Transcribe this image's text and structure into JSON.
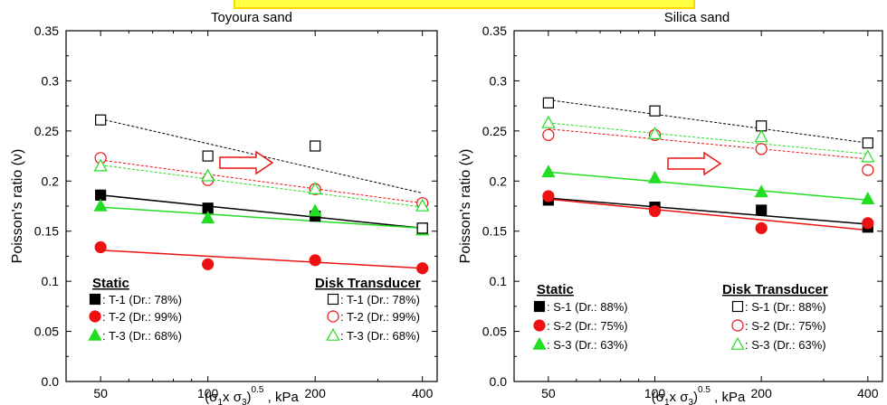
{
  "chart_data": [
    {
      "type": "scatter",
      "title": "Toyoura sand",
      "xlabel_main": "(σ",
      "xlabel_sub1": "1",
      "xlabel_mid": "x σ",
      "xlabel_sub3": "3",
      "xlabel_close": ")",
      "xlabel_sup": "0.5",
      "xlabel_unit": " , kPa",
      "ylabel": "Poisson's ratio (ν)",
      "xscale": "log",
      "xlim": [
        40,
        440
      ],
      "ylim": [
        0,
        0.35
      ],
      "xticks": [
        50,
        100,
        200,
        400
      ],
      "xtick_labels": [
        "50",
        "100",
        "200",
        "400"
      ],
      "yticks": [
        0,
        0.05,
        0.1,
        0.15,
        0.2,
        0.25,
        0.3,
        0.35
      ],
      "ytick_labels": [
        "0.0",
        "0.05",
        "0.1",
        "0.15",
        "0.2",
        "0.25",
        "0.3",
        "0.35"
      ],
      "legend_static_title": "Static",
      "legend_disk_title": "Disk Transducer",
      "series": [
        {
          "name": ": T-1 (Dr.: 78%)",
          "method": "static",
          "marker": "square",
          "filled": true,
          "color": "#000000",
          "x": [
            50,
            100,
            200,
            400
          ],
          "y": [
            0.186,
            0.173,
            0.165,
            0.153
          ],
          "fit": [
            0.186,
            0.153
          ],
          "fit_style": "solid"
        },
        {
          "name": ": T-2 (Dr.: 99%)",
          "method": "static",
          "marker": "circle",
          "filled": true,
          "color": "#ee1111",
          "x": [
            50,
            100,
            200,
            400
          ],
          "y": [
            0.134,
            0.117,
            0.121,
            0.113
          ],
          "fit": [
            0.131,
            0.113
          ],
          "fit_style": "solid"
        },
        {
          "name": ": T-3 (Dr.: 68%)",
          "method": "static",
          "marker": "triangle",
          "filled": true,
          "color": "#22dd22",
          "x": [
            50,
            100,
            200,
            400
          ],
          "y": [
            0.175,
            0.163,
            0.17,
            0.151
          ],
          "fit": [
            0.174,
            0.153
          ],
          "fit_style": "solid"
        },
        {
          "name": ": T-1 (Dr.: 78%)",
          "method": "disk",
          "marker": "square",
          "filled": false,
          "color": "#000000",
          "x": [
            50,
            100,
            200,
            400
          ],
          "y": [
            0.261,
            0.225,
            0.235,
            0.153
          ],
          "fit": [
            0.262,
            0.188
          ],
          "fit_style": "dashed"
        },
        {
          "name": ": T-2 (Dr.: 99%)",
          "method": "disk",
          "marker": "circle",
          "filled": false,
          "color": "#ee1111",
          "x": [
            50,
            100,
            200,
            400
          ],
          "y": [
            0.223,
            0.201,
            0.192,
            0.178
          ],
          "fit": [
            0.221,
            0.178
          ],
          "fit_style": "dashed"
        },
        {
          "name": ": T-3 (Dr.: 68%)",
          "method": "disk",
          "marker": "triangle",
          "filled": false,
          "color": "#22dd22",
          "x": [
            50,
            100,
            200,
            400
          ],
          "y": [
            0.215,
            0.205,
            0.192,
            0.175
          ],
          "fit": [
            0.216,
            0.174
          ],
          "fit_style": "dashed"
        }
      ]
    },
    {
      "type": "scatter",
      "title": "Silica sand",
      "xlabel_main": "(σ",
      "xlabel_sub1": "1",
      "xlabel_mid": "x σ",
      "xlabel_sub3": "3",
      "xlabel_close": ")",
      "xlabel_sup": "0.5",
      "xlabel_unit": " , kPa",
      "ylabel": "Poisson's ratio (ν)",
      "xscale": "log",
      "xlim": [
        40,
        440
      ],
      "ylim": [
        0,
        0.35
      ],
      "xticks": [
        50,
        100,
        200,
        400
      ],
      "xtick_labels": [
        "50",
        "100",
        "200",
        "400"
      ],
      "yticks": [
        0,
        0.05,
        0.1,
        0.15,
        0.2,
        0.25,
        0.3,
        0.35
      ],
      "ytick_labels": [
        "0.0",
        "0.05",
        "0.1",
        "0.15",
        "0.2",
        "0.25",
        "0.3",
        "0.35"
      ],
      "legend_static_title": "Static",
      "legend_disk_title": "Disk Transducer",
      "series": [
        {
          "name": ": S-1 (Dr.: 88%)",
          "method": "static",
          "marker": "square",
          "filled": true,
          "color": "#000000",
          "x": [
            50,
            100,
            200,
            400
          ],
          "y": [
            0.181,
            0.174,
            0.171,
            0.154
          ],
          "fit": [
            0.183,
            0.157
          ],
          "fit_style": "solid"
        },
        {
          "name": ": S-2 (Dr.: 75%)",
          "method": "static",
          "marker": "circle",
          "filled": true,
          "color": "#ee1111",
          "x": [
            50,
            100,
            200,
            400
          ],
          "y": [
            0.185,
            0.17,
            0.153,
            0.158
          ],
          "fit": [
            0.182,
            0.151
          ],
          "fit_style": "solid"
        },
        {
          "name": ": S-3 (Dr.: 63%)",
          "method": "static",
          "marker": "triangle",
          "filled": true,
          "color": "#22dd22",
          "x": [
            50,
            100,
            200,
            400
          ],
          "y": [
            0.209,
            0.203,
            0.189,
            0.182
          ],
          "fit": [
            0.209,
            0.181
          ],
          "fit_style": "solid"
        },
        {
          "name": ": S-1 (Dr.: 88%)",
          "method": "disk",
          "marker": "square",
          "filled": false,
          "color": "#000000",
          "x": [
            50,
            100,
            200,
            400
          ],
          "y": [
            0.278,
            0.27,
            0.255,
            0.238
          ],
          "fit": [
            0.281,
            0.238
          ],
          "fit_style": "dashed"
        },
        {
          "name": ": S-2 (Dr.: 75%)",
          "method": "disk",
          "marker": "circle",
          "filled": false,
          "color": "#ee1111",
          "x": [
            50,
            100,
            200,
            400
          ],
          "y": [
            0.246,
            0.246,
            0.232,
            0.211
          ],
          "fit": [
            0.252,
            0.222
          ],
          "fit_style": "dashed"
        },
        {
          "name": ": S-3 (Dr.: 63%)",
          "method": "disk",
          "marker": "triangle",
          "filled": false,
          "color": "#22dd22",
          "x": [
            50,
            100,
            200,
            400
          ],
          "y": [
            0.258,
            0.247,
            0.244,
            0.224
          ],
          "fit": [
            0.258,
            0.227
          ],
          "fit_style": "dashed"
        }
      ]
    }
  ],
  "colors": {
    "banner_fill": "#ffff44",
    "banner_border": "#ffd700",
    "arrow": "#ee1111"
  }
}
